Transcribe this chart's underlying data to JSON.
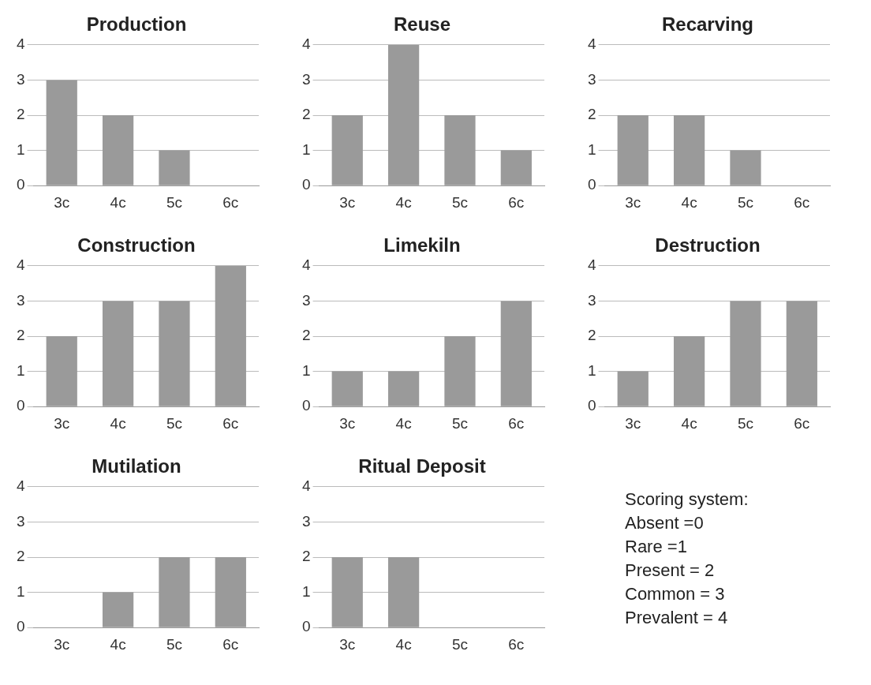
{
  "chart_data": [
    {
      "type": "bar",
      "title": "Production",
      "categories": [
        "3c",
        "4c",
        "5c",
        "6c"
      ],
      "values": [
        3,
        2,
        1,
        0
      ],
      "color": "#9a9a9a",
      "ylim": [
        0,
        4
      ],
      "yticks": [
        0,
        1,
        2,
        3,
        4
      ],
      "grid": "y"
    },
    {
      "type": "bar",
      "title": "Reuse",
      "categories": [
        "3c",
        "4c",
        "5c",
        "6c"
      ],
      "values": [
        2,
        4,
        2,
        1
      ],
      "color": "#9a9a9a",
      "ylim": [
        0,
        4
      ],
      "yticks": [
        0,
        1,
        2,
        3,
        4
      ],
      "grid": "y"
    },
    {
      "type": "bar",
      "title": "Recarving",
      "categories": [
        "3c",
        "4c",
        "5c",
        "6c"
      ],
      "values": [
        2,
        2,
        1,
        0
      ],
      "color": "#9a9a9a",
      "ylim": [
        0,
        4
      ],
      "yticks": [
        0,
        1,
        2,
        3,
        4
      ],
      "grid": "y"
    },
    {
      "type": "bar",
      "title": "Construction",
      "categories": [
        "3c",
        "4c",
        "5c",
        "6c"
      ],
      "values": [
        2,
        3,
        3,
        4
      ],
      "color": "#9a9a9a",
      "ylim": [
        0,
        4
      ],
      "yticks": [
        0,
        1,
        2,
        3,
        4
      ],
      "grid": "y"
    },
    {
      "type": "bar",
      "title": "Limekiln",
      "categories": [
        "3c",
        "4c",
        "5c",
        "6c"
      ],
      "values": [
        1,
        1,
        2,
        3
      ],
      "color": "#9a9a9a",
      "ylim": [
        0,
        4
      ],
      "yticks": [
        0,
        1,
        2,
        3,
        4
      ],
      "grid": "y"
    },
    {
      "type": "bar",
      "title": "Destruction",
      "categories": [
        "3c",
        "4c",
        "5c",
        "6c"
      ],
      "values": [
        1,
        2,
        3,
        3
      ],
      "color": "#9a9a9a",
      "ylim": [
        0,
        4
      ],
      "yticks": [
        0,
        1,
        2,
        3,
        4
      ],
      "grid": "y"
    },
    {
      "type": "bar",
      "title": "Mutilation",
      "categories": [
        "3c",
        "4c",
        "5c",
        "6c"
      ],
      "values": [
        0,
        1,
        2,
        2
      ],
      "color": "#9a9a9a",
      "ylim": [
        0,
        4
      ],
      "yticks": [
        0,
        1,
        2,
        3,
        4
      ],
      "grid": "y"
    },
    {
      "type": "bar",
      "title": "Ritual Deposit",
      "categories": [
        "3c",
        "4c",
        "5c",
        "6c"
      ],
      "values": [
        2,
        2,
        0,
        0
      ],
      "color": "#9a9a9a",
      "ylim": [
        0,
        4
      ],
      "yticks": [
        0,
        1,
        2,
        3,
        4
      ],
      "grid": "y"
    },
    {
      "type": "other",
      "title": "Scoring system:",
      "annotations": [
        "Absent =0",
        "Rare =1",
        "Present = 2",
        "Common = 3",
        "Prevalent = 4"
      ]
    }
  ]
}
